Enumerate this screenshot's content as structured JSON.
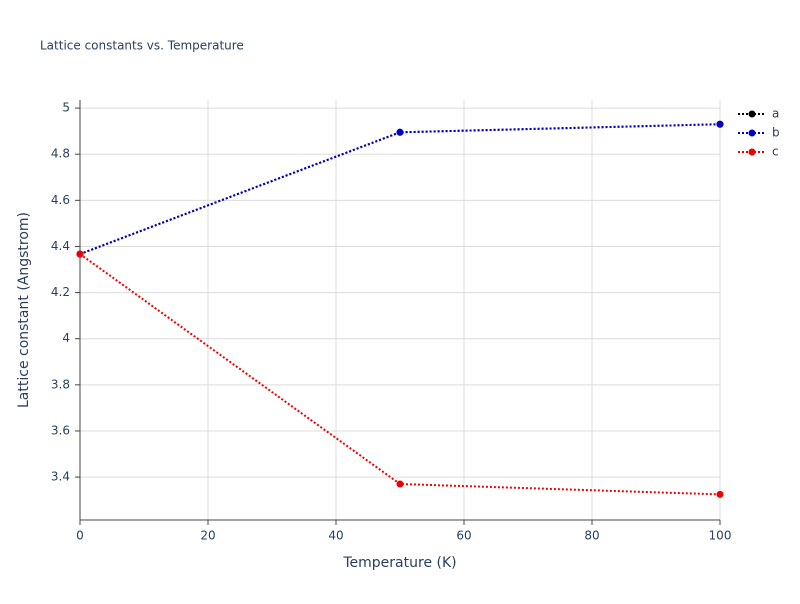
{
  "chart_data": {
    "type": "line",
    "title": "Lattice constants vs. Temperature",
    "x_label": "Temperature (K)",
    "y_label": "Lattice constant (Angstrom)",
    "x": [
      0,
      50,
      100
    ],
    "series": [
      {
        "name": "a",
        "color": "#000000",
        "values": [
          4.367,
          4.895,
          4.93
        ]
      },
      {
        "name": "b",
        "color": "#0000cc",
        "values": [
          4.367,
          4.895,
          4.93
        ]
      },
      {
        "name": "c",
        "color": "#ee0000",
        "values": [
          4.367,
          3.37,
          3.325
        ]
      }
    ],
    "xlim": [
      0,
      100
    ],
    "xticks": [
      0,
      20,
      40,
      60,
      80,
      100
    ],
    "ylim": [
      3.214,
      5.035
    ],
    "yticks": [
      3.4,
      3.6,
      3.8,
      4,
      4.2,
      4.4,
      4.6,
      4.8,
      5
    ],
    "grid": true,
    "legend": "top-right"
  }
}
